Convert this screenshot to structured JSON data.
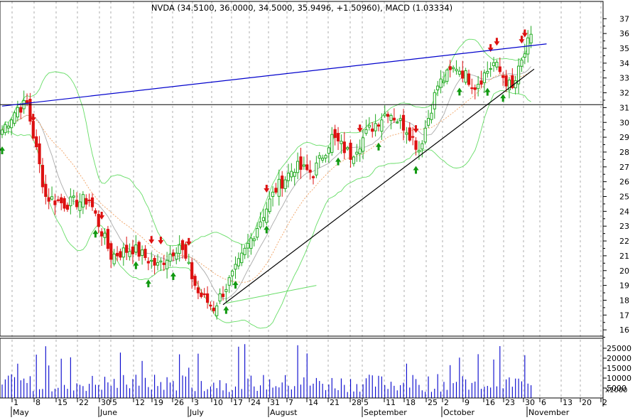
{
  "title": "NVDA (34.5100, 36.0000, 34.5000, 35.9496, +1.50960), MACD (1.03334)",
  "chart_data": {
    "type": "candlestick",
    "ylim": [
      15.6,
      38
    ],
    "y_ticks": [
      16,
      17,
      18,
      19,
      20,
      21,
      22,
      23,
      24,
      25,
      26,
      27,
      28,
      29,
      30,
      31,
      32,
      33,
      34,
      35,
      36,
      37
    ],
    "volume_ylim": [
      0,
      30000
    ],
    "volume_ticks": [
      "25000",
      "20000",
      "15000",
      "10000",
      "5000"
    ],
    "volume_unit_label": "x1000",
    "day_ticks": [
      "1",
      "8",
      "15",
      "22",
      "30",
      "5",
      "12",
      "19",
      "26",
      "3",
      "10",
      "17",
      "24",
      "31",
      "7",
      "14",
      "21",
      "28",
      "5",
      "11",
      "18",
      "25",
      "2",
      "9",
      "16",
      "23",
      "30",
      "6",
      "13",
      "20",
      "2"
    ],
    "months": [
      "May",
      "June",
      "July",
      "August",
      "September",
      "October",
      "November"
    ],
    "horizontal_line": 31.2,
    "upper_trendline": {
      "from": [
        0,
        31.1
      ],
      "to": [
        175,
        35.3
      ]
    },
    "lower_trendline": {
      "from": [
        71,
        17.7
      ],
      "to": [
        171,
        33.6
      ]
    },
    "close_series_samples": [
      {
        "day": 0,
        "close": 29.5
      },
      {
        "day": 5,
        "close": 31.0
      },
      {
        "day": 8,
        "close": 31.2
      },
      {
        "day": 14,
        "close": 25.0
      },
      {
        "day": 20,
        "close": 24.5
      },
      {
        "day": 28,
        "close": 24.8
      },
      {
        "day": 35,
        "close": 21.0
      },
      {
        "day": 42,
        "close": 21.5
      },
      {
        "day": 50,
        "close": 20.3
      },
      {
        "day": 57,
        "close": 21.8
      },
      {
        "day": 63,
        "close": 18.5
      },
      {
        "day": 68,
        "close": 17.5
      },
      {
        "day": 75,
        "close": 20.0
      },
      {
        "day": 82,
        "close": 23.0
      },
      {
        "day": 88,
        "close": 25.5
      },
      {
        "day": 94,
        "close": 27.0
      },
      {
        "day": 100,
        "close": 26.6
      },
      {
        "day": 106,
        "close": 29.0
      },
      {
        "day": 112,
        "close": 27.8
      },
      {
        "day": 118,
        "close": 29.5
      },
      {
        "day": 124,
        "close": 30.8
      },
      {
        "day": 130,
        "close": 29.6
      },
      {
        "day": 134,
        "close": 28.2
      },
      {
        "day": 140,
        "close": 32.5
      },
      {
        "day": 146,
        "close": 33.8
      },
      {
        "day": 152,
        "close": 32.5
      },
      {
        "day": 158,
        "close": 34.0
      },
      {
        "day": 164,
        "close": 32.2
      },
      {
        "day": 170,
        "close": 35.9
      }
    ]
  }
}
